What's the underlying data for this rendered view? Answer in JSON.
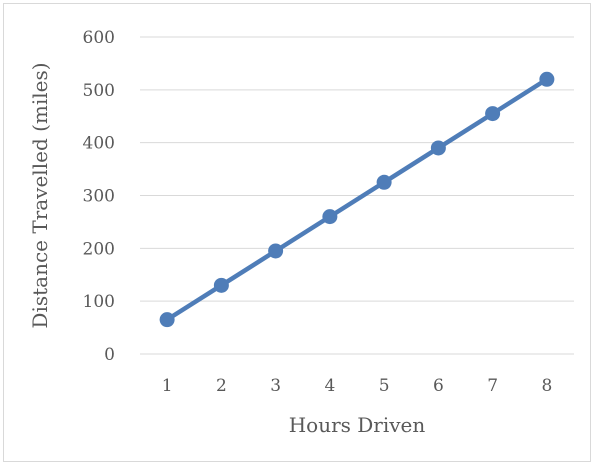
{
  "chart_data": {
    "type": "line",
    "title": "",
    "xlabel": "Hours Driven",
    "ylabel": "Distance Travelled (miles)",
    "categories": [
      "1",
      "2",
      "3",
      "4",
      "5",
      "6",
      "7",
      "8"
    ],
    "x": [
      1,
      2,
      3,
      4,
      5,
      6,
      7,
      8
    ],
    "series": [
      {
        "values": [
          65,
          130,
          195,
          260,
          325,
          390,
          455,
          520
        ],
        "color": "#4f7db8"
      }
    ],
    "ylim": [
      0,
      600
    ],
    "yticks": [
      "0",
      "100",
      "200",
      "300",
      "400",
      "500",
      "600"
    ],
    "grid": true,
    "legend": "none",
    "markers": true
  }
}
